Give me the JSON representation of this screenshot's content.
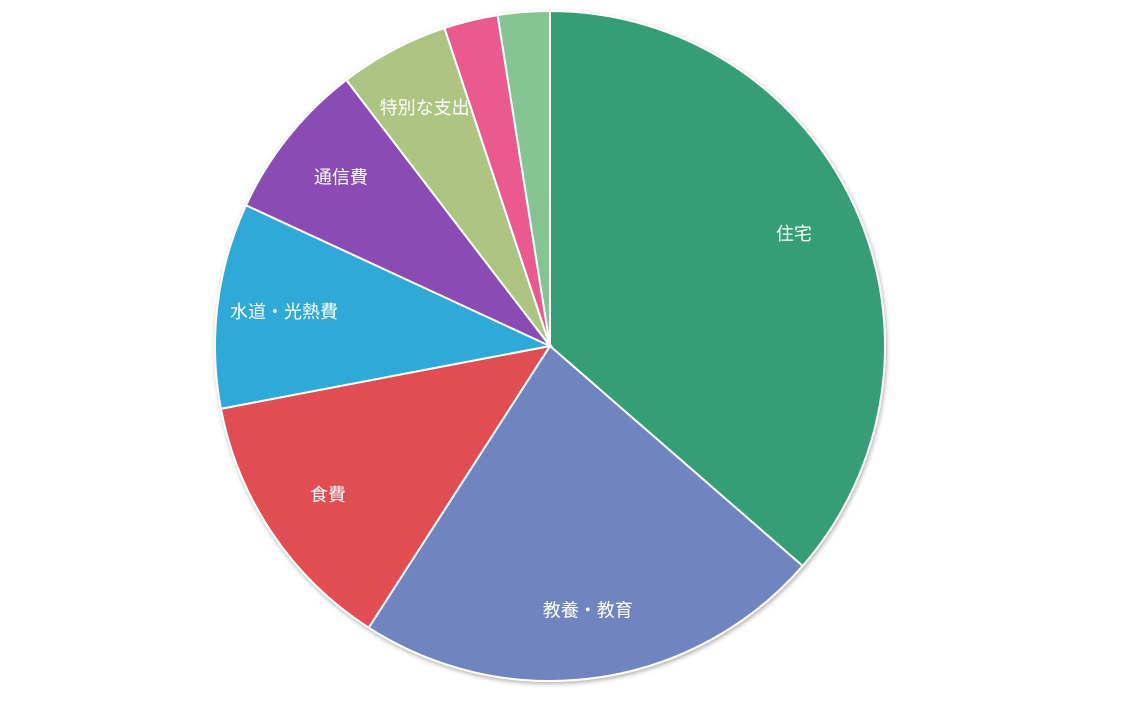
{
  "chart_data": {
    "type": "pie",
    "categories": [
      "住宅",
      "教養・教育",
      "食費",
      "水道・光熱費",
      "通信費",
      "特別な支出",
      null,
      null
    ],
    "values": [
      36.4,
      22.7,
      12.9,
      9.9,
      7.7,
      5.3,
      2.6,
      2.5
    ],
    "colors": [
      "#359e76",
      "#6f84bf",
      "#e04e52",
      "#2ea9d8",
      "#8a4bb4",
      "#adc483",
      "#eb5a8f",
      "#86c494"
    ]
  }
}
